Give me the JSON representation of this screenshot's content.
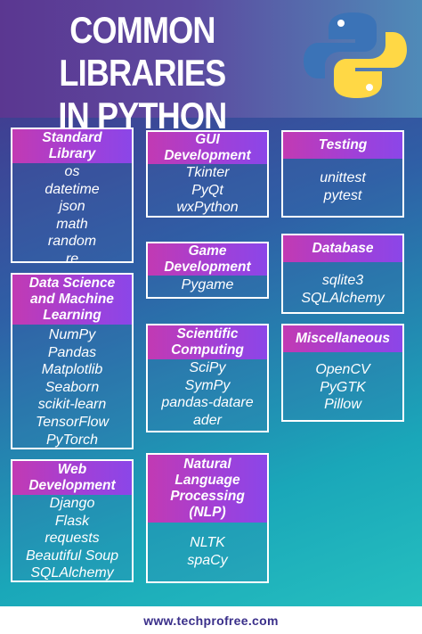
{
  "title": {
    "line1": "COMMON LIBRARIES",
    "line2": "IN PYTHON"
  },
  "logo": {
    "icon": "python-logo-icon",
    "colors": {
      "blue": "#3b73b7",
      "yellow": "#ffd845"
    }
  },
  "accent": {
    "header_gradient_start": "#c23ab3",
    "header_gradient_end": "#8b46e8"
  },
  "categories": {
    "standard_library": {
      "heading": [
        "Standard",
        "Library"
      ],
      "items": [
        "os",
        "datetime",
        "json",
        "math",
        "random",
        "re"
      ]
    },
    "data_science": {
      "heading": [
        "Data Science",
        "and Machine",
        "Learning"
      ],
      "items": [
        "NumPy",
        "Pandas",
        "Matplotlib",
        "Seaborn",
        "scikit-learn",
        "TensorFlow",
        "PyTorch"
      ]
    },
    "web_development": {
      "heading": [
        "Web",
        "Development"
      ],
      "items": [
        "Django",
        "Flask",
        "requests",
        "Beautiful Soup",
        "SQLAlchemy"
      ]
    },
    "gui_development": {
      "heading": [
        "GUI",
        "Development"
      ],
      "items": [
        "Tkinter",
        "PyQt",
        "wxPython"
      ]
    },
    "game_development": {
      "heading": [
        "Game",
        "Development"
      ],
      "items": [
        "Pygame"
      ]
    },
    "scientific_computing": {
      "heading": [
        "Scientific",
        "Computing"
      ],
      "items": [
        "SciPy",
        "SymPy",
        "pandas-datare",
        "ader"
      ]
    },
    "nlp": {
      "heading": [
        "Natural",
        "Language",
        "Processing",
        "(NLP)"
      ],
      "items": [
        "NLTK",
        "spaCy"
      ]
    },
    "testing": {
      "heading": [
        "Testing"
      ],
      "items": [
        "unittest",
        "pytest"
      ]
    },
    "database": {
      "heading": [
        "Database"
      ],
      "items": [
        "sqlite3",
        "SQLAlchemy"
      ]
    },
    "miscellaneous": {
      "heading": [
        "Miscellaneous"
      ],
      "items": [
        "OpenCV",
        "PyGTK",
        "Pillow"
      ]
    }
  },
  "footer": {
    "url": "www.techprofree.com"
  }
}
